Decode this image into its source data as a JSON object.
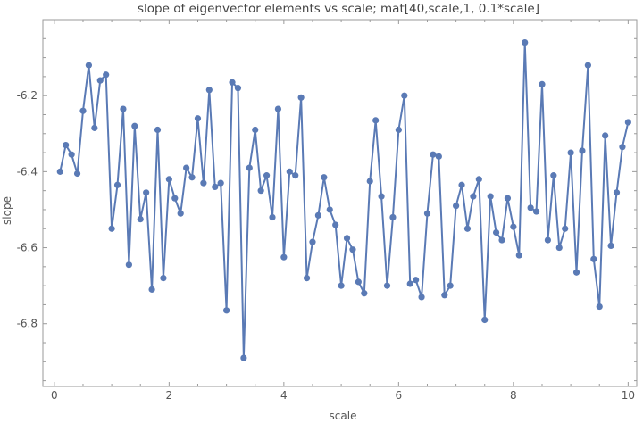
{
  "chart_data": {
    "type": "line",
    "title": "slope of eigenvector elements vs scale; mat[40,scale,1, 0.1*scale]",
    "xlabel": "scale",
    "ylabel": "slope",
    "xlim": [
      -0.2,
      10.15
    ],
    "ylim": [
      -6.965,
      -6.0
    ],
    "x_ticks": [
      0,
      2,
      4,
      6,
      8,
      10
    ],
    "y_ticks": [
      -6.8,
      -6.6,
      -6.4,
      -6.2
    ],
    "x_tick_labels": [
      "0",
      "2",
      "4",
      "6",
      "8",
      "10"
    ],
    "y_tick_labels": [
      "-6.8",
      "-6.6",
      "-6.4",
      "-6.2"
    ],
    "grid": false,
    "frame": "box",
    "markers": true,
    "series": [
      {
        "color": "#5a7ab5",
        "x": [
          0.1,
          0.2,
          0.3,
          0.4,
          0.5,
          0.6,
          0.7,
          0.8,
          0.9,
          1.0,
          1.1,
          1.2,
          1.3,
          1.4,
          1.5,
          1.6,
          1.7,
          1.8,
          1.9,
          2.0,
          2.1,
          2.2,
          2.3,
          2.4,
          2.5,
          2.6,
          2.7,
          2.8,
          2.9,
          3.0,
          3.1,
          3.2,
          3.3,
          3.4,
          3.5,
          3.6,
          3.7,
          3.8,
          3.9,
          4.0,
          4.1,
          4.2,
          4.3,
          4.4,
          4.5,
          4.6,
          4.7,
          4.8,
          4.9,
          5.0,
          5.1,
          5.2,
          5.3,
          5.4,
          5.5,
          5.6,
          5.7,
          5.8,
          5.9,
          6.0,
          6.1,
          6.2,
          6.3,
          6.4,
          6.5,
          6.6,
          6.7,
          6.8,
          6.9,
          7.0,
          7.1,
          7.2,
          7.3,
          7.4,
          7.5,
          7.6,
          7.7,
          7.8,
          7.9,
          8.0,
          8.1,
          8.2,
          8.3,
          8.4,
          8.5,
          8.6,
          8.7,
          8.8,
          8.9,
          9.0,
          9.1,
          9.2,
          9.3,
          9.4,
          9.5,
          9.6,
          9.7,
          9.8,
          9.9,
          10.0
        ],
        "values": [
          -6.4,
          -6.33,
          -6.355,
          -6.405,
          -6.24,
          -6.12,
          -6.285,
          -6.16,
          -6.145,
          -6.55,
          -6.435,
          -6.235,
          -6.645,
          -6.28,
          -6.525,
          -6.455,
          -6.71,
          -6.29,
          -6.68,
          -6.42,
          -6.47,
          -6.51,
          -6.39,
          -6.415,
          -6.26,
          -6.43,
          -6.185,
          -6.44,
          -6.43,
          -6.765,
          -6.165,
          -6.18,
          -6.89,
          -6.39,
          -6.29,
          -6.45,
          -6.41,
          -6.52,
          -6.235,
          -6.625,
          -6.4,
          -6.41,
          -6.205,
          -6.68,
          -6.585,
          -6.515,
          -6.415,
          -6.5,
          -6.54,
          -6.7,
          -6.575,
          -6.605,
          -6.69,
          -6.72,
          -6.425,
          -6.265,
          -6.465,
          -6.7,
          -6.52,
          -6.29,
          -6.2,
          -6.695,
          -6.685,
          -6.73,
          -6.51,
          -6.355,
          -6.36,
          -6.725,
          -6.7,
          -6.49,
          -6.435,
          -6.55,
          -6.465,
          -6.42,
          -6.79,
          -6.465,
          -6.56,
          -6.58,
          -6.47,
          -6.545,
          -6.62,
          -6.06,
          -6.495,
          -6.505,
          -6.17,
          -6.58,
          -6.41,
          -6.6,
          -6.55,
          -6.35,
          -6.665,
          -6.345,
          -6.12,
          -6.63,
          -6.755,
          -6.305,
          -6.595,
          -6.455,
          -6.335,
          -6.27
        ]
      }
    ]
  }
}
